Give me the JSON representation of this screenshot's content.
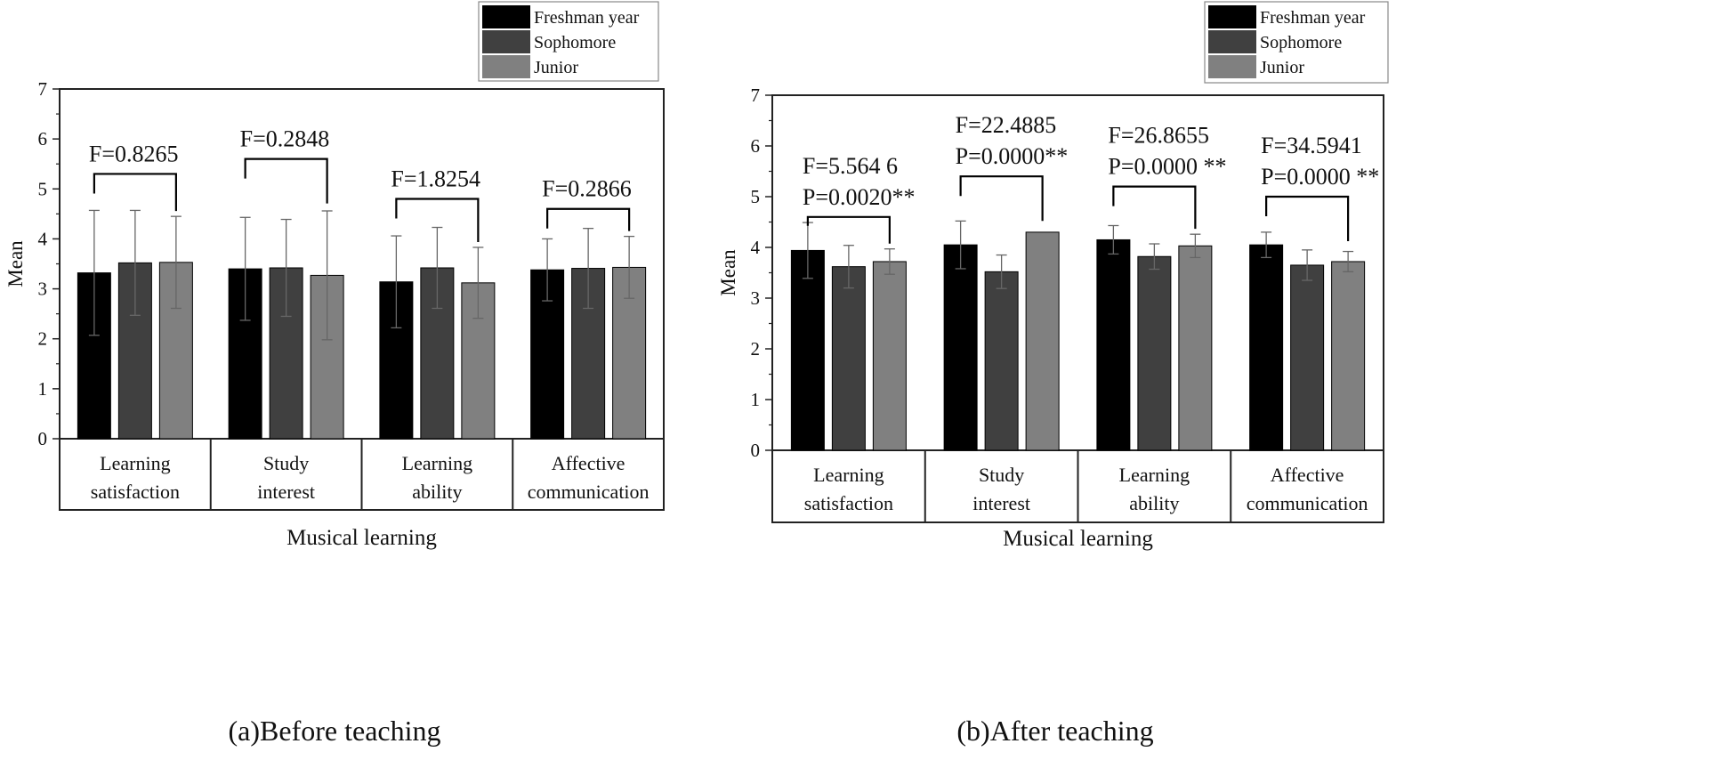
{
  "colors": {
    "freshman": "#000000",
    "sophomore": "#404040",
    "junior": "#808080",
    "axis": "#222222",
    "legend_border": "#888888"
  },
  "chart_data": [
    {
      "id": "a",
      "type": "bar",
      "caption": "(a)Before teaching",
      "xlabel": "Musical learning",
      "ylabel": "Mean",
      "ylim": [
        0,
        7
      ],
      "yticks": [
        "0",
        "1",
        "2",
        "3",
        "4",
        "5",
        "6",
        "7"
      ],
      "categories": [
        [
          "Learning",
          "satisfaction"
        ],
        [
          "Study",
          "interest"
        ],
        [
          "Learning",
          "ability"
        ],
        [
          "Affective",
          "communication"
        ]
      ],
      "legend": {
        "position": "top-right",
        "entries": [
          "Freshman year",
          "Sophomore",
          "Junior"
        ]
      },
      "series": [
        {
          "name": "Freshman year",
          "values": [
            3.32,
            3.4,
            3.14,
            3.38
          ],
          "errors": [
            1.25,
            1.03,
            0.92,
            0.62
          ]
        },
        {
          "name": "Sophomore",
          "values": [
            3.52,
            3.42,
            3.42,
            3.41
          ],
          "errors": [
            1.05,
            0.97,
            0.81,
            0.8
          ]
        },
        {
          "name": "Junior",
          "values": [
            3.53,
            3.27,
            3.12,
            3.43
          ],
          "errors": [
            0.92,
            1.29,
            0.71,
            0.62
          ]
        }
      ],
      "annotations": [
        {
          "lines": [
            "F=0.8265"
          ],
          "bracket_y": 5.3
        },
        {
          "lines": [
            "F=0.2848"
          ],
          "bracket_y": 5.6
        },
        {
          "lines": [
            "F=1.8254"
          ],
          "bracket_y": 4.8
        },
        {
          "lines": [
            "F=0.2866"
          ],
          "bracket_y": 4.6
        }
      ]
    },
    {
      "id": "b",
      "type": "bar",
      "caption": "(b)After teaching",
      "xlabel": "Musical learning",
      "ylabel": "Mean",
      "ylim": [
        0,
        7
      ],
      "yticks": [
        "0",
        "1",
        "2",
        "3",
        "4",
        "5",
        "6",
        "7"
      ],
      "categories": [
        [
          "Learning",
          "satisfaction"
        ],
        [
          "Study",
          "interest"
        ],
        [
          "Learning",
          "ability"
        ],
        [
          "Affective",
          "communication"
        ]
      ],
      "legend": {
        "position": "top-right",
        "entries": [
          "Freshman year",
          "Sophomore",
          "Junior"
        ]
      },
      "series": [
        {
          "name": "Freshman year",
          "values": [
            3.94,
            4.05,
            4.15,
            4.05
          ],
          "errors": [
            0.55,
            0.47,
            0.28,
            0.25
          ]
        },
        {
          "name": "Sophomore",
          "values": [
            3.62,
            3.52,
            3.82,
            3.65
          ],
          "errors": [
            0.42,
            0.33,
            0.25,
            0.3
          ]
        },
        {
          "name": "Junior",
          "values": [
            3.72,
            4.3,
            4.03,
            3.72
          ],
          "errors": [
            0.25,
            0.0,
            0.23,
            0.2
          ]
        }
      ],
      "annotations": [
        {
          "lines": [
            "F=5.564 6",
            "P=0.0020**"
          ],
          "bracket_y": 4.6
        },
        {
          "lines": [
            "F=22.4885",
            "P=0.0000**"
          ],
          "bracket_y": 5.4
        },
        {
          "lines": [
            "F=26.8655",
            "P=0.0000 **"
          ],
          "bracket_y": 5.2
        },
        {
          "lines": [
            "F=34.5941",
            "P=0.0000 **"
          ],
          "bracket_y": 5.0
        }
      ]
    }
  ]
}
